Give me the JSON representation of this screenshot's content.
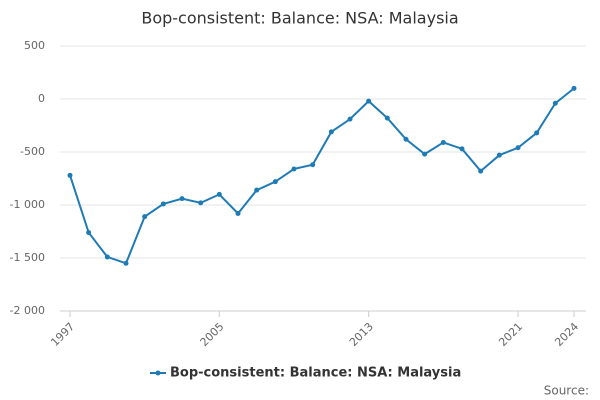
{
  "chart_data": {
    "type": "line",
    "title": "Bop-consistent: Balance: NSA: Malaysia",
    "x": [
      1997,
      1998,
      1999,
      2000,
      2001,
      2002,
      2003,
      2004,
      2005,
      2006,
      2007,
      2008,
      2009,
      2010,
      2011,
      2012,
      2013,
      2014,
      2015,
      2016,
      2017,
      2018,
      2019,
      2020,
      2021,
      2022,
      2023,
      2024
    ],
    "series": [
      {
        "name": "Bop-consistent: Balance: NSA: Malaysia",
        "color": "#1f7bb6",
        "values": [
          -720,
          -1260,
          -1490,
          -1550,
          -1110,
          -990,
          -940,
          -980,
          -900,
          -1080,
          -860,
          -780,
          -660,
          -620,
          -310,
          -190,
          -20,
          -180,
          -380,
          -520,
          -410,
          -470,
          -680,
          -530,
          -460,
          -320,
          -40,
          100
        ]
      }
    ],
    "xlim": [
      1997,
      2024
    ],
    "xticks": [
      1997,
      2005,
      2013,
      2021,
      2024
    ],
    "ylim": [
      -2000,
      500
    ],
    "yticks": [
      {
        "value": -2000,
        "label": "-2 000"
      },
      {
        "value": -1500,
        "label": "-1 500"
      },
      {
        "value": -1000,
        "label": "-1 000"
      },
      -500,
      0,
      500
    ],
    "grid": true,
    "legend": "bottom",
    "source": "Source:"
  }
}
